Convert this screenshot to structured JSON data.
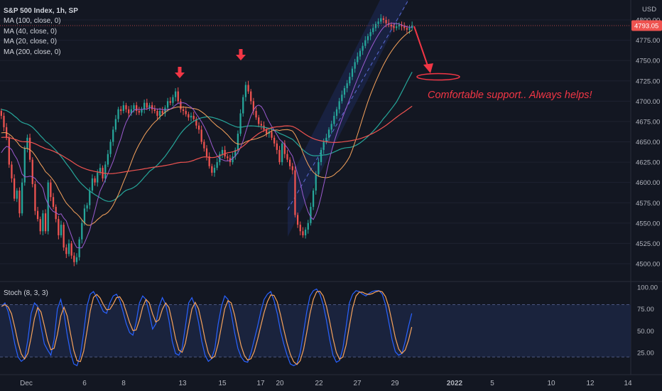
{
  "legend": {
    "title": "S&P 500 Index, 1h, SP",
    "ma_lines": [
      "MA (100, close, 0)",
      "MA (40, close, 0)",
      "MA (20, close, 0)",
      "MA (200, close, 0)"
    ]
  },
  "currency": "USD",
  "last_price": "4793.05",
  "annotation": "Comfortable support.. Always helps!",
  "stoch_label": "Stoch (8, 3, 3)",
  "colors": {
    "background": "#131722",
    "up": "#26a69a",
    "down": "#ef5350",
    "ma100": "#26a69a",
    "ma40": "#f7a35c",
    "ma20": "#9c5bd0",
    "ma200": "#ef5350",
    "stoch_k": "#2962ff",
    "stoch_d": "#f7a35c",
    "annotation": "#f23645",
    "channel": "#1e2a5a"
  },
  "chart_data": [
    {
      "type": "candlestick",
      "title": "S&P 500 Index, 1h, SP",
      "y_ticks": [
        "4800.00",
        "4775.00",
        "4750.00",
        "4725.00",
        "4700.00",
        "4675.00",
        "4650.00",
        "4625.00",
        "4600.00",
        "4575.00",
        "4550.00",
        "4525.00",
        "4500.00"
      ],
      "x_ticks": [
        "Dec",
        "6",
        "8",
        "13",
        "15",
        "17",
        "20",
        "22",
        "27",
        "29",
        "2022",
        "5",
        "10",
        "12",
        "14"
      ],
      "ylim": [
        4490,
        4810
      ],
      "last_price": 4793.05,
      "series_close": [
        4682,
        4668,
        4655,
        4622,
        4605,
        4580,
        4590,
        4562,
        4600,
        4642,
        4655,
        4628,
        4598,
        4565,
        4555,
        4540,
        4562,
        4540,
        4600,
        4582,
        4570,
        4555,
        4535,
        4548,
        4520,
        4512,
        4525,
        4510,
        4502,
        4508,
        4530,
        4550,
        4568,
        4572,
        4590,
        4605,
        4600,
        4612,
        4618,
        4605,
        4622,
        4635,
        4650,
        4665,
        4678,
        4690,
        4688,
        4695,
        4690,
        4685,
        4690,
        4695,
        4688,
        4686,
        4690,
        4698,
        4692,
        4695,
        4690,
        4688,
        4682,
        4688,
        4685,
        4692,
        4700,
        4698,
        4705,
        4712,
        4700,
        4690,
        4688,
        4684,
        4680,
        4682,
        4678,
        4670,
        4665,
        4650,
        4642,
        4632,
        4620,
        4612,
        4618,
        4625,
        4635,
        4640,
        4632,
        4630,
        4625,
        4632,
        4640,
        4660,
        4685,
        4705,
        4720,
        4712,
        4700,
        4688,
        4680,
        4672,
        4670,
        4665,
        4660,
        4662,
        4655,
        4648,
        4640,
        4625,
        4648,
        4635,
        4628,
        4620,
        4615,
        4560,
        4548,
        4540,
        4535,
        4542,
        4550,
        4570,
        4590,
        4610,
        4625,
        4640,
        4650,
        4655,
        4665,
        4672,
        4682,
        4690,
        4700,
        4708,
        4716,
        4722,
        4730,
        4740,
        4748,
        4755,
        4762,
        4768,
        4775,
        4780,
        4785,
        4790,
        4795,
        4798,
        4802,
        4800,
        4796,
        4794,
        4792,
        4790,
        4792,
        4794,
        4792,
        4790,
        4788,
        4790,
        4793
      ],
      "moving_averages": [
        {
          "name": "MA (100, close, 0)",
          "color": "#26a69a"
        },
        {
          "name": "MA (40, close, 0)",
          "color": "#f7a35c"
        },
        {
          "name": "MA (20, close, 0)",
          "color": "#9c5bd0"
        },
        {
          "name": "MA (200, close, 0)",
          "color": "#ef5350"
        }
      ]
    },
    {
      "type": "line",
      "title": "Stoch (8, 3, 3)",
      "y_ticks": [
        "100.00",
        "75.00",
        "50.00",
        "25.00"
      ],
      "ylim": [
        0,
        100
      ],
      "bands": [
        20,
        80
      ],
      "series": [
        {
          "name": "%K",
          "color": "#2962ff"
        },
        {
          "name": "%D",
          "color": "#f7a35c"
        }
      ],
      "k_values": [
        78,
        82,
        72,
        55,
        35,
        20,
        15,
        18,
        40,
        70,
        82,
        78,
        55,
        35,
        28,
        22,
        40,
        75,
        86,
        70,
        45,
        25,
        12,
        10,
        22,
        48,
        78,
        92,
        95,
        88,
        80,
        72,
        70,
        82,
        90,
        92,
        85,
        72,
        58,
        48,
        45,
        60,
        82,
        90,
        86,
        70,
        52,
        58,
        78,
        88,
        80,
        62,
        38,
        24,
        22,
        30,
        55,
        82,
        88,
        78,
        60,
        38,
        22,
        15,
        18,
        30,
        58,
        78,
        90,
        86,
        70,
        48,
        30,
        20,
        15,
        14,
        25,
        40,
        55,
        72,
        86,
        92,
        95,
        85,
        70,
        50,
        35,
        22,
        12,
        10,
        12,
        25,
        48,
        72,
        90,
        96,
        98,
        92,
        80,
        62,
        40,
        22,
        14,
        16,
        30,
        55,
        82,
        92,
        96,
        95,
        92,
        90,
        93,
        95,
        96,
        96,
        92,
        80,
        60,
        40,
        26,
        22,
        24,
        38,
        55,
        70
      ]
    }
  ]
}
